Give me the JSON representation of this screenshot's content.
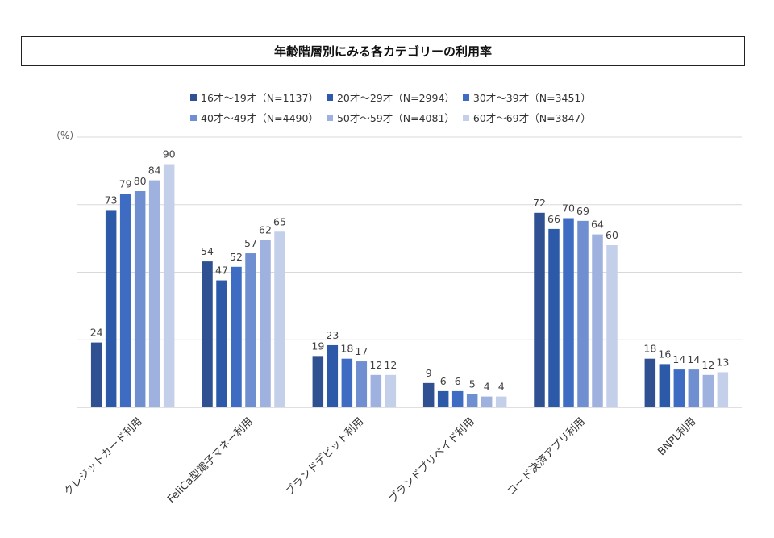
{
  "chart_data": {
    "type": "bar",
    "title": "年齢階層別にみる各カテゴリーの利用率",
    "unit_label": "（%）",
    "categories": [
      "クレジットカード利用",
      "FeliCa型電子マネー利用",
      "ブランドデビット利用",
      "ブランドプリペイド利用",
      "コード決済アプリ利用",
      "BNPL利用"
    ],
    "series": [
      {
        "name": "16才～19才（N=1137）",
        "color": "#2f5091",
        "values": [
          24,
          54,
          19,
          9,
          72,
          18
        ]
      },
      {
        "name": "20才～29才（N=2994）",
        "color": "#2d5aa8",
        "values": [
          73,
          47,
          23,
          6,
          66,
          16
        ]
      },
      {
        "name": "30才～39才（N=3451）",
        "color": "#3d6cc2",
        "values": [
          79,
          52,
          18,
          6,
          70,
          14
        ]
      },
      {
        "name": "40才～49才（N=4490）",
        "color": "#6f8fd0",
        "values": [
          80,
          57,
          17,
          5,
          69,
          14
        ]
      },
      {
        "name": "50才～59才（N=4081）",
        "color": "#9fb1de",
        "values": [
          84,
          62,
          12,
          4,
          64,
          12
        ]
      },
      {
        "name": "60才～69才（N=3847）",
        "color": "#c4cfea",
        "values": [
          90,
          65,
          12,
          4,
          60,
          13
        ]
      }
    ],
    "ylim": [
      0,
      100
    ],
    "gridlines": [
      0,
      25,
      50,
      75,
      100
    ],
    "legend_position": "top"
  }
}
